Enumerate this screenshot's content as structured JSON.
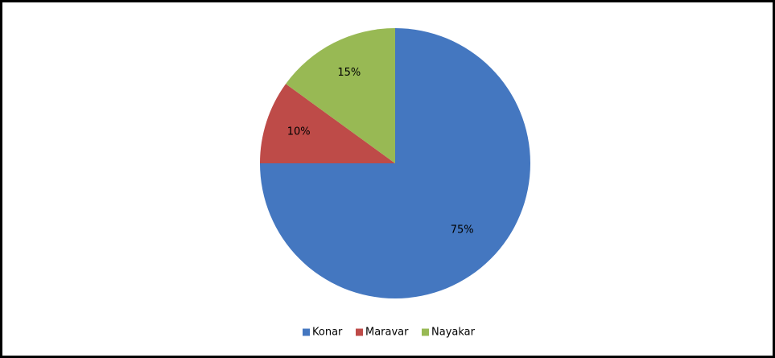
{
  "chart_data": {
    "type": "pie",
    "categories": [
      "Konar",
      "Maravar",
      "Nayakar"
    ],
    "values": [
      75,
      10,
      15
    ],
    "value_labels": [
      "75%",
      "10%",
      "15%"
    ],
    "colors": [
      "#4477c0",
      "#be4b48",
      "#98b954"
    ],
    "legend": "bottom"
  }
}
